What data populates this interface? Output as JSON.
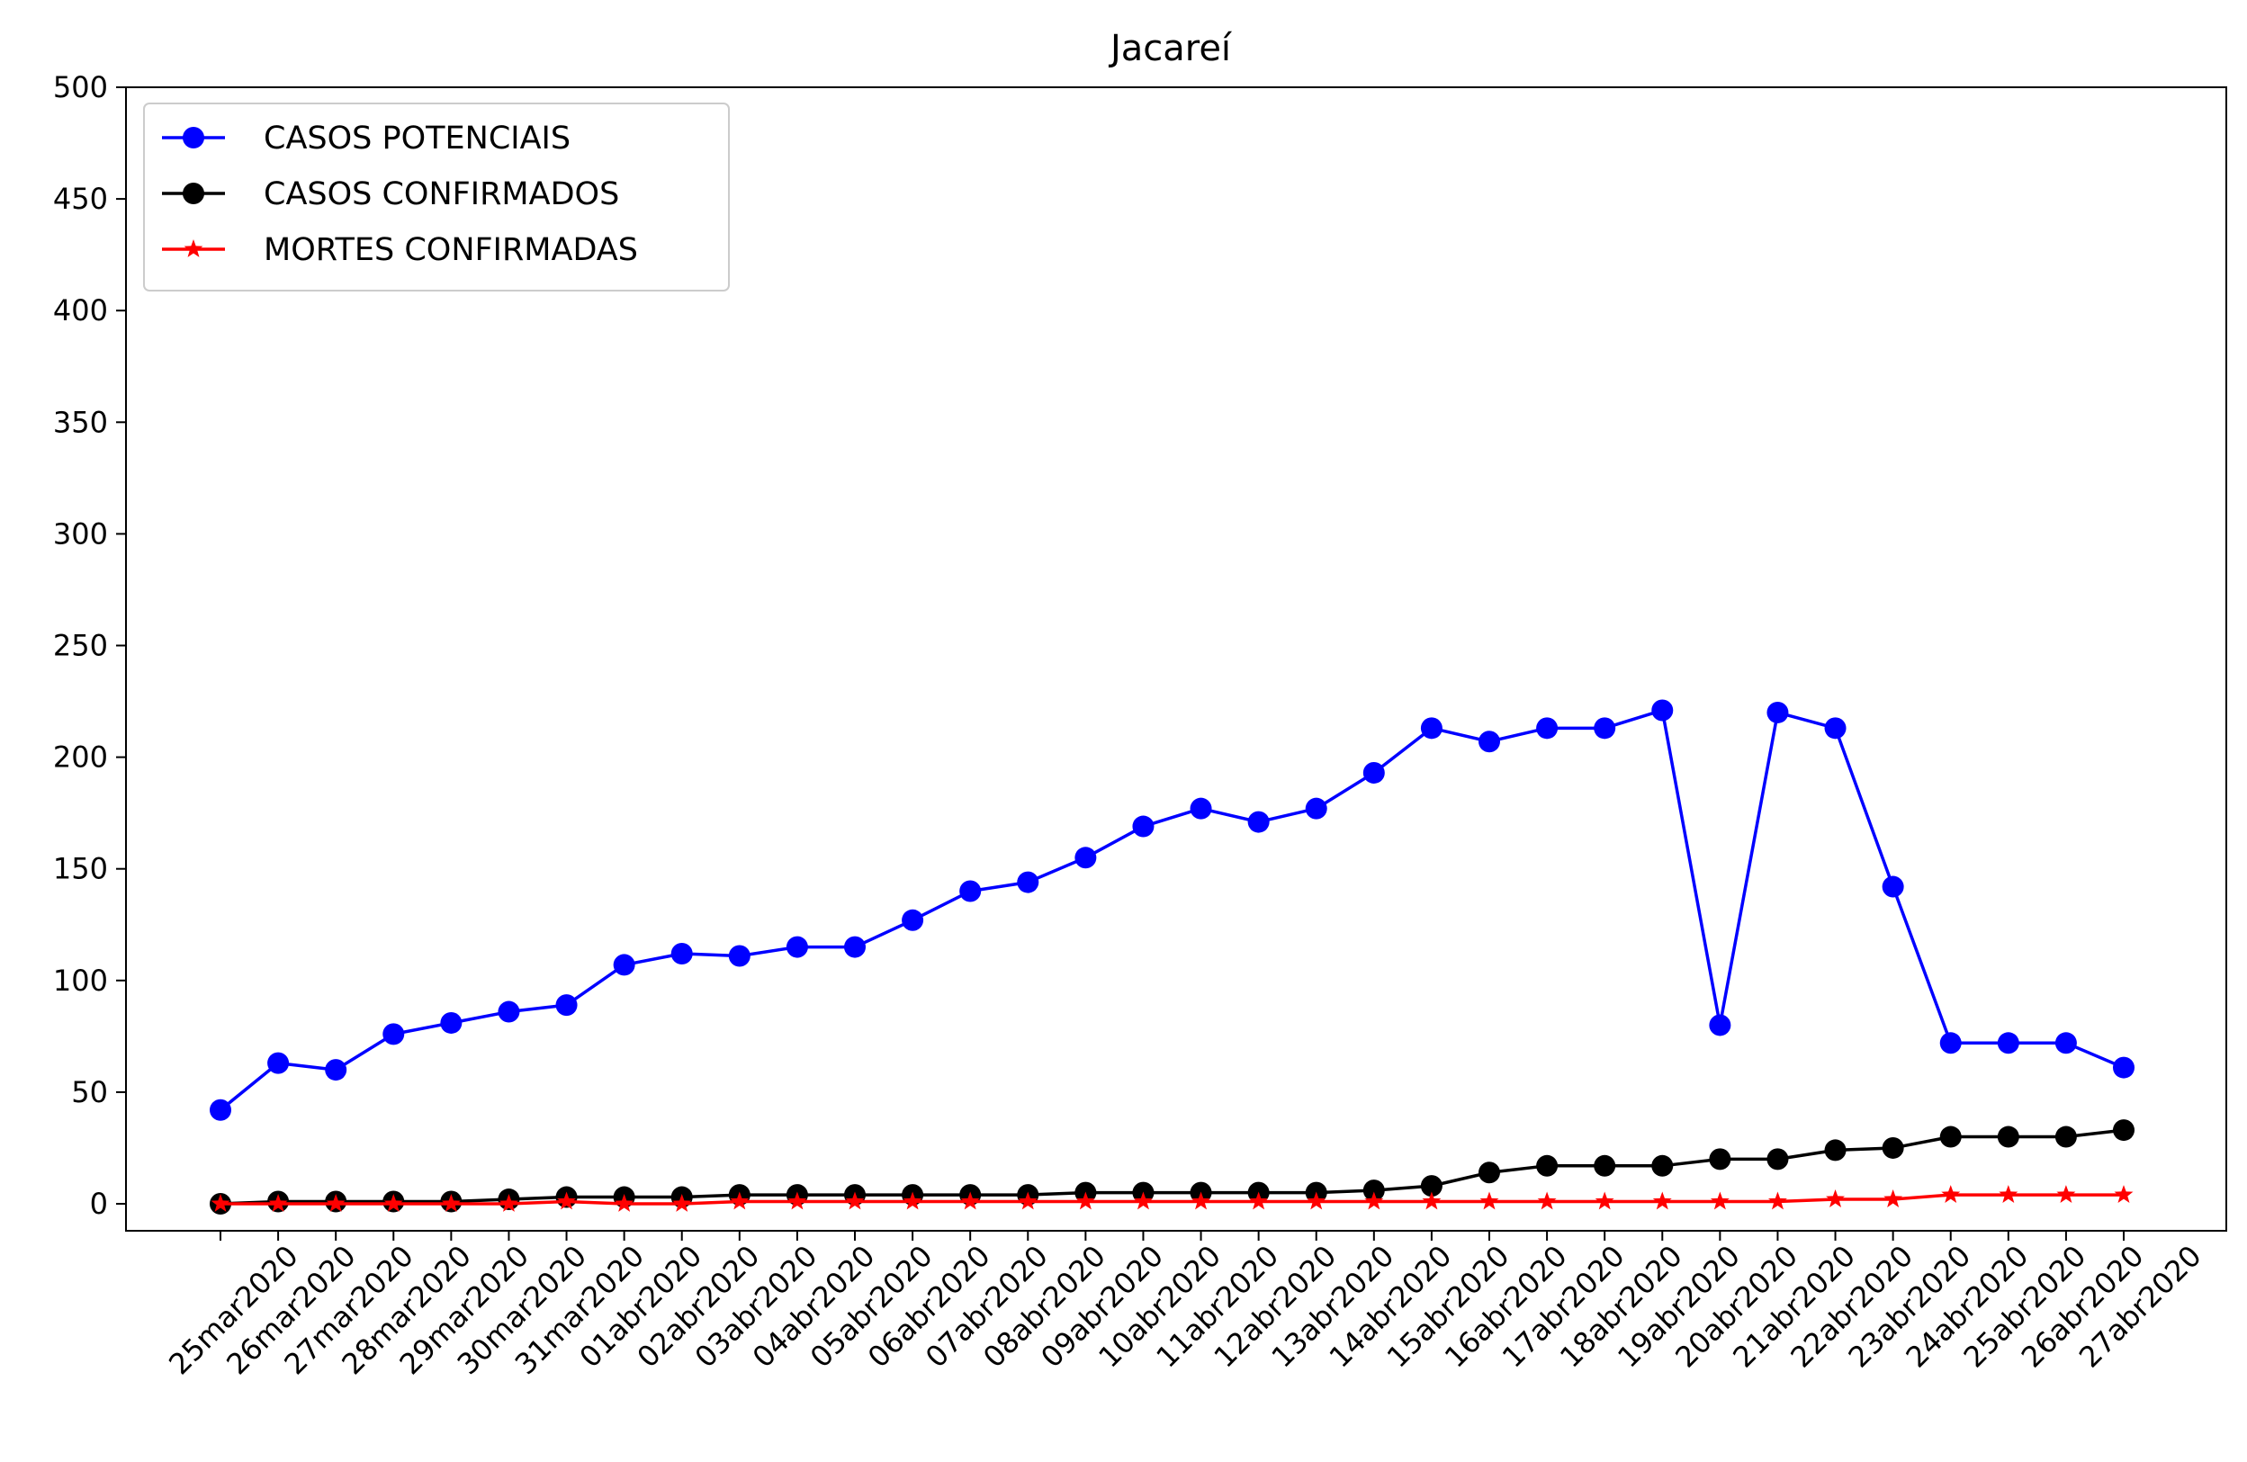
{
  "chart_data": {
    "type": "line",
    "title": "Jacareí",
    "xlabel": "",
    "ylabel": "",
    "ylim": [
      0,
      500
    ],
    "yticks": [
      0,
      50,
      100,
      150,
      200,
      250,
      300,
      350,
      400,
      450,
      500
    ],
    "grid": false,
    "legend_position": "top-left",
    "categories": [
      "25mar2020",
      "26mar2020",
      "27mar2020",
      "28mar2020",
      "29mar2020",
      "30mar2020",
      "31mar2020",
      "01abr2020",
      "02abr2020",
      "03abr2020",
      "04abr2020",
      "05abr2020",
      "06abr2020",
      "07abr2020",
      "08abr2020",
      "09abr2020",
      "10abr2020",
      "11abr2020",
      "12abr2020",
      "13abr2020",
      "14abr2020",
      "15abr2020",
      "16abr2020",
      "17abr2020",
      "18abr2020",
      "19abr2020",
      "20abr2020",
      "21abr2020",
      "22abr2020",
      "23abr2020",
      "24abr2020",
      "25abr2020",
      "26abr2020",
      "27abr2020"
    ],
    "series": [
      {
        "name": "CASOS POTENCIAIS",
        "color": "#0000ff",
        "marker": "circle",
        "values": [
          42,
          63,
          60,
          76,
          81,
          86,
          89,
          107,
          112,
          111,
          115,
          115,
          127,
          140,
          144,
          155,
          169,
          177,
          171,
          177,
          193,
          213,
          207,
          213,
          213,
          221,
          80,
          220,
          213,
          142,
          72,
          72,
          72,
          61
        ]
      },
      {
        "name": "CASOS CONFIRMADOS",
        "color": "#000000",
        "marker": "circle",
        "values": [
          0,
          1,
          1,
          1,
          1,
          2,
          3,
          3,
          3,
          4,
          4,
          4,
          4,
          4,
          4,
          5,
          5,
          5,
          5,
          5,
          6,
          8,
          14,
          17,
          17,
          17,
          20,
          20,
          24,
          25,
          30,
          30,
          30,
          33
        ]
      },
      {
        "name": "MORTES CONFIRMADAS",
        "color": "#ff0000",
        "marker": "star",
        "values": [
          0,
          0,
          0,
          0,
          0,
          0,
          1,
          0,
          0,
          1,
          1,
          1,
          1,
          1,
          1,
          1,
          1,
          1,
          1,
          1,
          1,
          1,
          1,
          1,
          1,
          1,
          1,
          1,
          2,
          2,
          4,
          4,
          4,
          4
        ]
      }
    ]
  }
}
